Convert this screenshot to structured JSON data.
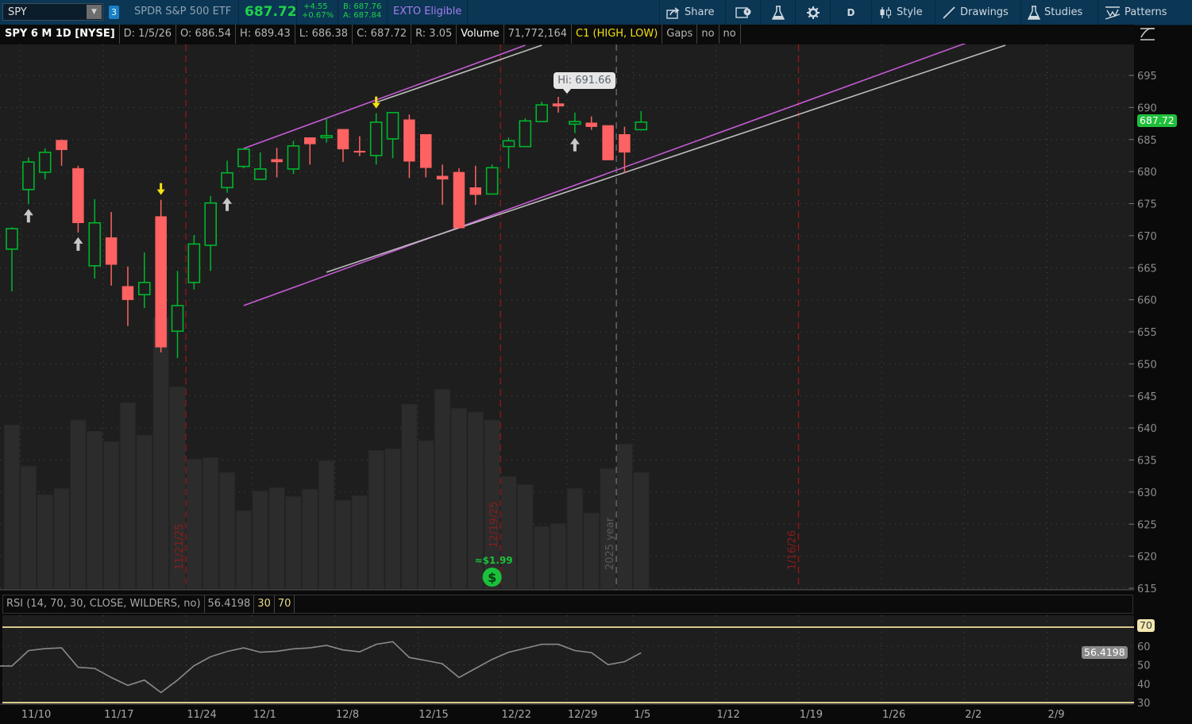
{
  "toolbar": {
    "symbol": "SPY",
    "link_group": "3",
    "description": "SPDR S&P 500 ETF",
    "last": "687.72",
    "change": "+4.55",
    "change_pct": "+0.67%",
    "bid": "B: 687.76",
    "ask": "A: 687.84",
    "exto": "EXTO Eligible",
    "share_label": "Share",
    "timeframe": "D",
    "style_label": "Style",
    "drawings_label": "Drawings",
    "studies_label": "Studies",
    "patterns_label": "Patterns"
  },
  "infobar": {
    "title": "SPY 6 M 1D [NYSE]",
    "date": "D: 1/5/26",
    "open": "O: 686.54",
    "high": "H: 689.43",
    "low": "L: 686.38",
    "close": "C: 687.72",
    "range": "R: 3.05",
    "volume_label": "Volume",
    "volume_value": "71,772,164",
    "study": "C1 (HIGH, LOW)",
    "gaps_label": "Gaps",
    "gaps_1": "no",
    "gaps_2": "no"
  },
  "rsi_header": {
    "label": "RSI (14, 70, 30, CLOSE, WILDERS, no)",
    "value": "56.4198",
    "oversold": "30",
    "overbought": "70"
  },
  "colors": {
    "up": "#00b52d",
    "down": "#ff6262",
    "volume": "#2c2c2c",
    "background": "#1e1e1e",
    "trendline_primary": "#c65bd6",
    "trendline_secondary": "#bdbdbd",
    "expiration_line": "#a01414",
    "rsi_line": "#8a8a8a",
    "rsi_bounds": "#d8c98a",
    "last_price_badge": "#1fbf3a",
    "signal_up": "#c8c8c8",
    "signal_down": "#f5e211",
    "dividend": "#19c23a",
    "exto": "#a67cf2"
  },
  "chart_data": {
    "type": "candlestick",
    "symbol": "SPY",
    "columns": [
      "date",
      "open",
      "high",
      "low",
      "close",
      "volume_millions"
    ],
    "candles": [
      [
        "11/7/25",
        667.9,
        671.3,
        661.3,
        671.1,
        101.1
      ],
      [
        "11/10/25",
        677.2,
        682.2,
        674.9,
        681.5,
        75.7
      ],
      [
        "11/11/25",
        679.9,
        683.6,
        678.8,
        683.0,
        58.1
      ],
      [
        "11/12/25",
        684.9,
        685.0,
        680.9,
        683.4,
        62.0
      ],
      [
        "11/13/25",
        680.5,
        680.9,
        670.5,
        672.0,
        104.0
      ],
      [
        "11/14/25",
        665.3,
        675.7,
        663.3,
        672.0,
        97.2
      ],
      [
        "11/17/25",
        669.7,
        673.7,
        662.2,
        665.5,
        90.8
      ],
      [
        "11/18/25",
        662.1,
        665.2,
        655.9,
        660.0,
        114.7
      ],
      [
        "11/19/25",
        660.8,
        667.4,
        658.7,
        662.7,
        94.7
      ],
      [
        "11/20/25",
        673.0,
        675.6,
        651.8,
        652.6,
        167.0
      ],
      [
        "11/21/25",
        655.1,
        664.5,
        650.9,
        659.1,
        124.5
      ],
      [
        "11/24/25",
        662.7,
        670.1,
        661.6,
        668.7,
        80.1
      ],
      [
        "11/25/25",
        668.5,
        676.2,
        664.5,
        675.1,
        81.0
      ],
      [
        "11/26/25",
        677.5,
        681.7,
        676.7,
        679.8,
        71.8
      ],
      [
        "11/28/25",
        680.8,
        683.5,
        680.5,
        683.5,
        48.3
      ],
      [
        "12/1/25",
        678.8,
        683.0,
        678.8,
        680.4,
        60.5
      ],
      [
        "12/2/25",
        681.9,
        683.7,
        679.1,
        681.5,
        62.5
      ],
      [
        "12/3/25",
        680.4,
        684.8,
        679.6,
        684.0,
        57.1
      ],
      [
        "12/4/25",
        685.3,
        685.3,
        681.1,
        684.3,
        61.5
      ],
      [
        "12/5/25",
        685.3,
        688.3,
        684.5,
        685.6,
        79.1
      ],
      [
        "12/8/25",
        686.6,
        686.6,
        681.5,
        683.5,
        54.7
      ],
      [
        "12/9/25",
        683.2,
        685.5,
        682.4,
        683.0,
        57.6
      ],
      [
        "12/10/25",
        682.5,
        689.1,
        681.1,
        687.7,
        85.4
      ],
      [
        "12/11/25",
        685.1,
        689.2,
        682.1,
        689.2,
        86.4
      ],
      [
        "12/12/25",
        688.1,
        688.9,
        679.0,
        681.6,
        113.8
      ],
      [
        "12/15/25",
        685.8,
        685.8,
        679.1,
        680.6,
        91.3
      ],
      [
        "12/16/25",
        679.3,
        681.1,
        674.8,
        678.8,
        123.0
      ],
      [
        "12/17/25",
        679.9,
        680.5,
        671.2,
        671.2,
        111.3
      ],
      [
        "12/18/25",
        677.5,
        680.9,
        674.8,
        676.4,
        108.9
      ],
      [
        "12/19/25",
        676.5,
        681.1,
        676.4,
        680.6,
        104.0
      ],
      [
        "12/22/25",
        683.9,
        685.3,
        680.5,
        684.8,
        69.3
      ],
      [
        "12/23/25",
        683.9,
        688.3,
        683.9,
        687.9,
        64.4
      ],
      [
        "12/24/25",
        687.8,
        690.9,
        687.7,
        690.4,
        38.6
      ],
      [
        "12/26/25",
        690.6,
        691.66,
        689.2,
        690.2,
        40.5
      ],
      [
        "12/29/25",
        687.4,
        689.2,
        686.0,
        687.8,
        62.0
      ],
      [
        "12/30/25",
        687.6,
        688.6,
        686.5,
        687.0,
        46.9
      ],
      [
        "12/31/25",
        687.2,
        687.2,
        681.8,
        681.8,
        74.2
      ],
      [
        "1/2/26",
        685.8,
        687.0,
        679.8,
        683.0,
        89.3
      ],
      [
        "1/5/26",
        686.54,
        689.43,
        686.38,
        687.72,
        71.77
      ]
    ],
    "price_axis": {
      "ylim": [
        615,
        695
      ],
      "ticks": [
        "695",
        "690",
        "685",
        "680",
        "675",
        "670",
        "665",
        "660",
        "655",
        "650",
        "645",
        "640",
        "635",
        "630",
        "625",
        "620",
        "615"
      ],
      "last_price_label": "687.72"
    },
    "x_ticks": [
      {
        "label": "11/10",
        "date": "11/10/25"
      },
      {
        "label": "11/17",
        "date": "11/17/25"
      },
      {
        "label": "11/24",
        "date": "11/24/25"
      },
      {
        "label": "12/1",
        "date": "12/1/25"
      },
      {
        "label": "12/8",
        "date": "12/8/25"
      },
      {
        "label": "12/15",
        "date": "12/15/25"
      },
      {
        "label": "12/22",
        "date": "12/22/25"
      },
      {
        "label": "12/29",
        "date": "12/29/25"
      },
      {
        "label": "1/5",
        "date": "1/5/26"
      },
      {
        "label": "1/12",
        "date": "1/12/26"
      },
      {
        "label": "1/19",
        "date": "1/19/26"
      },
      {
        "label": "1/26",
        "date": "1/26/26"
      },
      {
        "label": "2/2",
        "date": "2/2/26"
      },
      {
        "label": "2/9",
        "date": "2/9/26"
      }
    ],
    "grid": true,
    "high_label": "Hi: 691.66",
    "high_date": "12/26/25",
    "event_lines": [
      {
        "label": "11/21/25",
        "after": "11/21/25",
        "style": "expiration"
      },
      {
        "label": "12/19/25",
        "after": "12/19/25",
        "style": "expiration"
      },
      {
        "label": "2025 year",
        "after": "12/31/25",
        "style": "year"
      },
      {
        "label": "1/16/26",
        "after": "1/16/26",
        "style": "expiration"
      }
    ],
    "dividend": {
      "label": "≈$1.99",
      "date": "12/19/25"
    },
    "signals": [
      {
        "date": "11/10/25",
        "dir": "up"
      },
      {
        "date": "11/13/25",
        "dir": "up"
      },
      {
        "date": "11/26/25",
        "dir": "up"
      },
      {
        "date": "12/29/25",
        "dir": "up"
      },
      {
        "date": "11/20/25",
        "dir": "down"
      },
      {
        "date": "12/10/25",
        "dir": "down"
      }
    ],
    "trendlines": [
      {
        "color": "primary",
        "from": [
          "11/28/25",
          683.6
        ],
        "to": [
          "12/23/25",
          699.7
        ]
      },
      {
        "color": "secondary",
        "from": [
          "12/10/25",
          690.8
        ],
        "to": [
          "12/24/25",
          699.7
        ]
      },
      {
        "color": "primary",
        "from": [
          "11/28/25",
          659.1
        ],
        "to": [
          "2/2/26",
          700.4
        ]
      },
      {
        "color": "secondary",
        "from": [
          "12/5/25",
          664.3
        ],
        "to": [
          "2/4/26",
          699.7
        ]
      }
    ],
    "rsi": {
      "ylim": [
        30,
        70
      ],
      "ticks": [
        "70",
        "60",
        "50",
        "40",
        "30"
      ],
      "current_label": "56.4198",
      "values": [
        49.4,
        57.6,
        58.6,
        59.0,
        48.7,
        48.1,
        43.3,
        39.1,
        41.9,
        35.3,
        41.9,
        49.6,
        54.3,
        57.1,
        59.0,
        56.7,
        57.2,
        58.5,
        59.0,
        60.3,
        57.9,
        56.9,
        60.9,
        62.3,
        53.9,
        52.3,
        50.6,
        43.3,
        48.1,
        52.9,
        56.7,
        58.8,
        60.9,
        60.9,
        57.6,
        56.5,
        50.1,
        51.7,
        56.42
      ]
    }
  }
}
